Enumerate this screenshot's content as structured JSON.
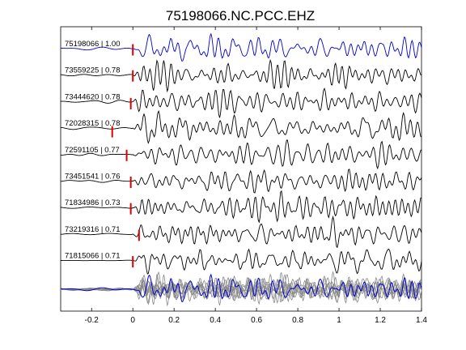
{
  "chart_data": {
    "type": "line",
    "title": "75198066.NC.PCC.EHZ",
    "xlabel": "",
    "ylabel": "",
    "xlim": [
      -0.35,
      1.4
    ],
    "xticks": [
      -0.2,
      0,
      0.2,
      0.4,
      0.6,
      0.8,
      1.0,
      1.2,
      1.4
    ],
    "xtick_labels": [
      "-0.2",
      "0",
      "0.2",
      "0.4",
      "0.6",
      "0.8",
      "1",
      "1.2",
      "1.4"
    ],
    "grid": false,
    "legend": "none",
    "colors": {
      "reference": "#0000cc",
      "trace": "#000000",
      "pick": "#dd0000",
      "overlay": "#888888"
    },
    "traces": [
      {
        "event_id": "75198066",
        "cc": "1.00",
        "label": "75198066 | 1.00",
        "pick_time": 0.0,
        "pick_offset": 0.05
      },
      {
        "event_id": "73559225",
        "cc": "0.78",
        "label": "73559225 | 0.78",
        "pick_time": 0.0,
        "pick_offset": 0.0
      },
      {
        "event_id": "73444620",
        "cc": "0.78",
        "label": "73444620 | 0.78",
        "pick_time": -0.01,
        "pick_offset": 0.15
      },
      {
        "event_id": "72028315",
        "cc": "0.78",
        "label": "72028315 | 0.78",
        "pick_time": -0.1,
        "pick_offset": 0.35
      },
      {
        "event_id": "72591105",
        "cc": "0.77",
        "label": "72591105 | 0.77",
        "pick_time": -0.03,
        "pick_offset": 0.0
      },
      {
        "event_id": "73451541",
        "cc": "0.76",
        "label": "73451541 | 0.76",
        "pick_time": -0.01,
        "pick_offset": 0.05
      },
      {
        "event_id": "71834986",
        "cc": "0.73",
        "label": "71834986 | 0.73",
        "pick_time": -0.01,
        "pick_offset": 0.05
      },
      {
        "event_id": "73219316",
        "cc": "0.71",
        "label": "73219316 | 0.71",
        "pick_time": 0.03,
        "pick_offset": 0.05
      },
      {
        "event_id": "71815066",
        "cc": "0.71",
        "label": "71815066 | 0.71",
        "pick_time": 0.0,
        "pick_offset": 0.05
      }
    ],
    "stack": {
      "description_free": true,
      "includes_reference": true
    }
  }
}
